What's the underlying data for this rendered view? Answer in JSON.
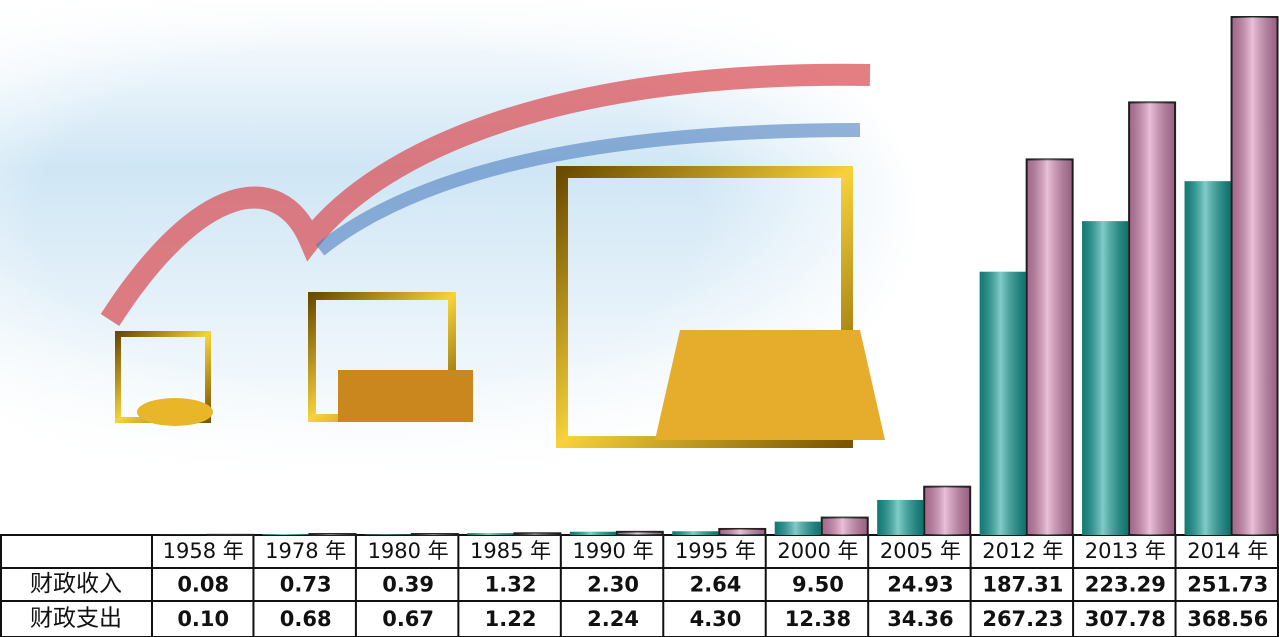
{
  "chart_data": {
    "type": "bar",
    "categories": [
      "1958 年",
      "1978 年",
      "1980 年",
      "1985 年",
      "1990 年",
      "1995 年",
      "2000 年",
      "2005 年",
      "2012 年",
      "2013 年",
      "2014 年"
    ],
    "series": [
      {
        "name": "财政收入",
        "color": "#14a39b",
        "values": [
          0.08,
          0.73,
          0.39,
          1.32,
          2.3,
          2.64,
          9.5,
          24.93,
          187.31,
          223.29,
          251.73
        ],
        "value_labels": [
          "0.08",
          "0.73",
          "0.39",
          "1.32",
          "2.30",
          "2.64",
          "9.50",
          "24.93",
          "187.31",
          "223.29",
          "251.73"
        ]
      },
      {
        "name": "财政支出",
        "color": "#d98bb8",
        "values": [
          0.1,
          0.68,
          0.67,
          1.22,
          2.24,
          4.3,
          12.38,
          34.36,
          267.23,
          307.78,
          368.56
        ],
        "value_labels": [
          "0.10",
          "0.68",
          "0.67",
          "1.22",
          "2.24",
          "4.30",
          "12.38",
          "34.36",
          "267.23",
          "307.78",
          "368.56"
        ]
      }
    ]
  }
}
